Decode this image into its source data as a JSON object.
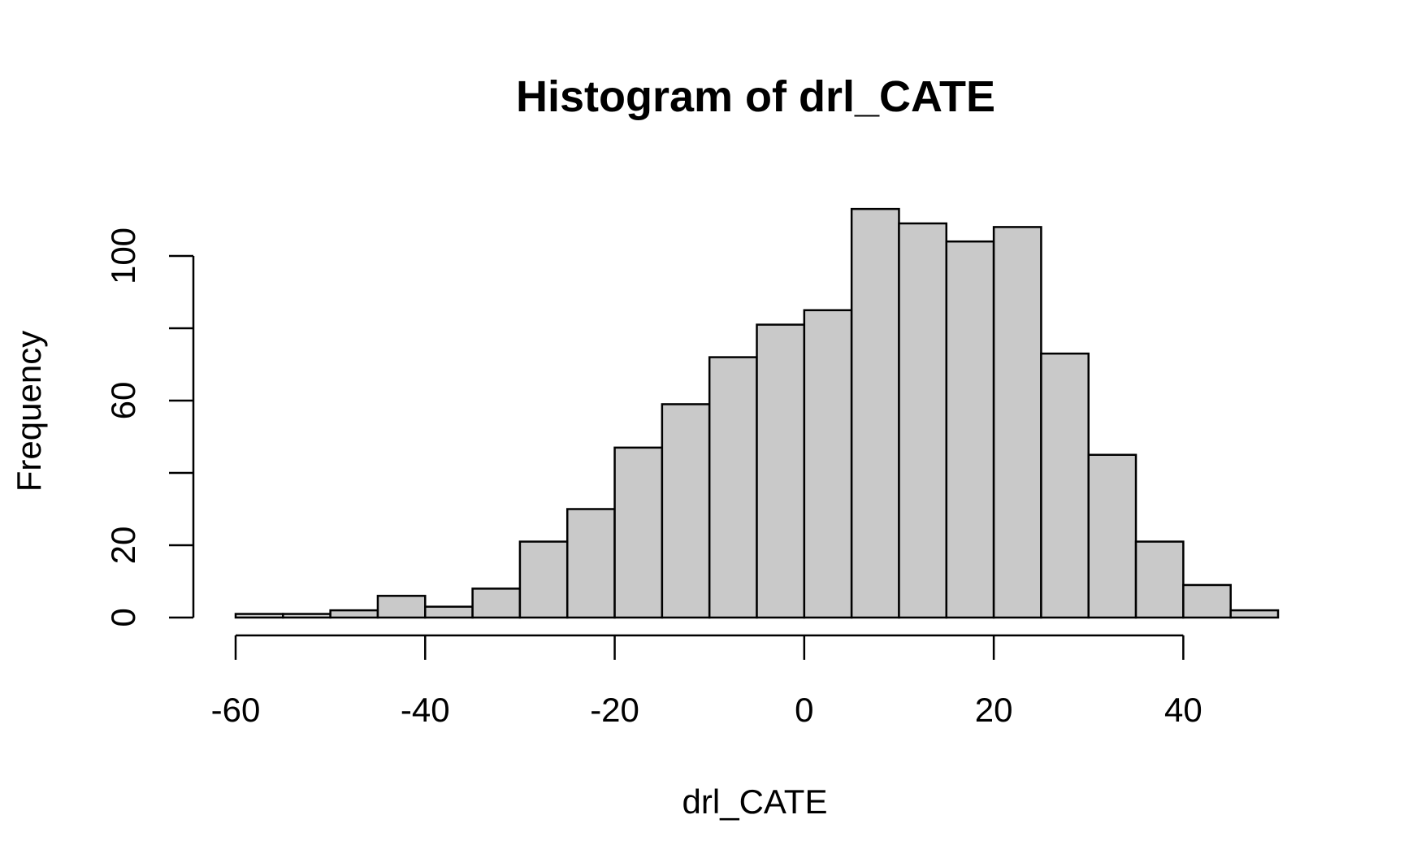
{
  "colors": {
    "bar_fill": "#c9c9c9",
    "bar_stroke": "#000000",
    "background": "#ffffff"
  },
  "chart_data": {
    "type": "bar",
    "title": "Histogram of drl_CATE",
    "xlabel": "drl_CATE",
    "ylabel": "Frequency",
    "bin_edges": [
      -60,
      -55,
      -50,
      -45,
      -40,
      -35,
      -30,
      -25,
      -20,
      -15,
      -10,
      -5,
      0,
      5,
      10,
      15,
      20,
      25,
      30,
      35,
      40,
      45,
      50
    ],
    "values": [
      1,
      1,
      2,
      6,
      3,
      8,
      21,
      30,
      47,
      59,
      72,
      81,
      85,
      113,
      109,
      104,
      108,
      73,
      45,
      21,
      9,
      2
    ],
    "xlim": [
      -60,
      50
    ],
    "ylim": [
      0,
      113
    ],
    "x_ticks": [
      -60,
      -40,
      -20,
      0,
      20,
      40
    ],
    "x_tick_labels": [
      "-60",
      "-40",
      "-20",
      "0",
      "20",
      "40"
    ],
    "y_ticks": [
      0,
      20,
      40,
      60,
      80,
      100
    ],
    "y_tick_labels": [
      "0",
      "20",
      "",
      "60",
      "",
      "100"
    ],
    "grid": false,
    "legend": "none"
  }
}
